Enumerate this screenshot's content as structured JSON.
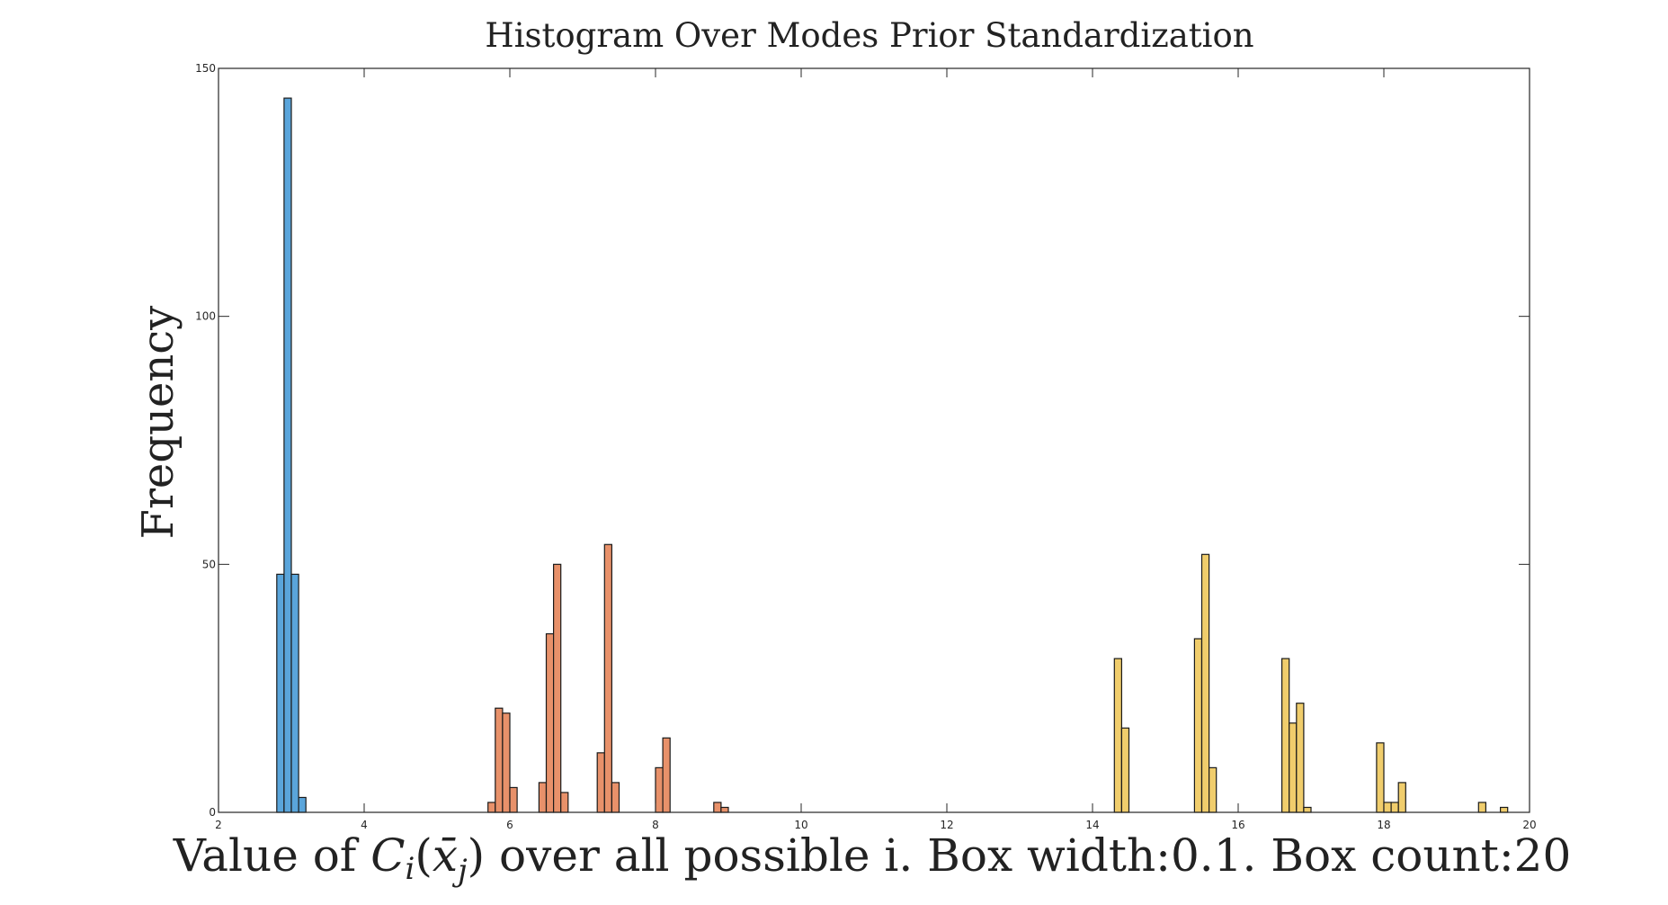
{
  "chart_data": {
    "type": "bar",
    "title": "Histogram Over Modes Prior Standardization",
    "ylabel": "Frequency",
    "xlabel": {
      "before": "Value of ",
      "math_base": "C",
      "math_sub": "i",
      "math_open": "(",
      "math_var": "x̄",
      "math_var_sub": "j",
      "math_close": ")",
      "after": " over all possible i. Box width:0.1. Box count:20"
    },
    "xlim": [
      2,
      20
    ],
    "ylim": [
      0,
      150
    ],
    "xticks": [
      "2",
      "4",
      "6",
      "8",
      "10",
      "12",
      "14",
      "16",
      "18",
      "20"
    ],
    "yticks": [
      "0",
      "50",
      "100",
      "150"
    ],
    "bin_width": 0.1,
    "series": [
      {
        "color": "#5aa5db",
        "bins": [
          {
            "x": 2.85,
            "y": 48
          },
          {
            "x": 2.95,
            "y": 144
          },
          {
            "x": 3.05,
            "y": 48
          },
          {
            "x": 3.15,
            "y": 3
          }
        ]
      },
      {
        "color": "#e8916a",
        "bins": [
          {
            "x": 5.75,
            "y": 2
          },
          {
            "x": 5.85,
            "y": 21
          },
          {
            "x": 5.95,
            "y": 20
          },
          {
            "x": 6.05,
            "y": 5
          },
          {
            "x": 6.45,
            "y": 6
          },
          {
            "x": 6.55,
            "y": 36
          },
          {
            "x": 6.65,
            "y": 50
          },
          {
            "x": 6.75,
            "y": 4
          },
          {
            "x": 7.25,
            "y": 12
          },
          {
            "x": 7.35,
            "y": 54
          },
          {
            "x": 7.45,
            "y": 6
          },
          {
            "x": 8.05,
            "y": 9
          },
          {
            "x": 8.15,
            "y": 15
          },
          {
            "x": 8.85,
            "y": 2
          },
          {
            "x": 8.95,
            "y": 1
          }
        ]
      },
      {
        "color": "#f0cd6c",
        "bins": [
          {
            "x": 14.35,
            "y": 31
          },
          {
            "x": 14.45,
            "y": 17
          },
          {
            "x": 15.45,
            "y": 35
          },
          {
            "x": 15.55,
            "y": 52
          },
          {
            "x": 15.65,
            "y": 9
          },
          {
            "x": 16.65,
            "y": 31
          },
          {
            "x": 16.75,
            "y": 18
          },
          {
            "x": 16.85,
            "y": 22
          },
          {
            "x": 16.95,
            "y": 1
          },
          {
            "x": 17.95,
            "y": 14
          },
          {
            "x": 18.05,
            "y": 2
          },
          {
            "x": 18.15,
            "y": 2
          },
          {
            "x": 18.25,
            "y": 6
          },
          {
            "x": 19.35,
            "y": 2
          },
          {
            "x": 19.65,
            "y": 1
          }
        ]
      }
    ]
  }
}
